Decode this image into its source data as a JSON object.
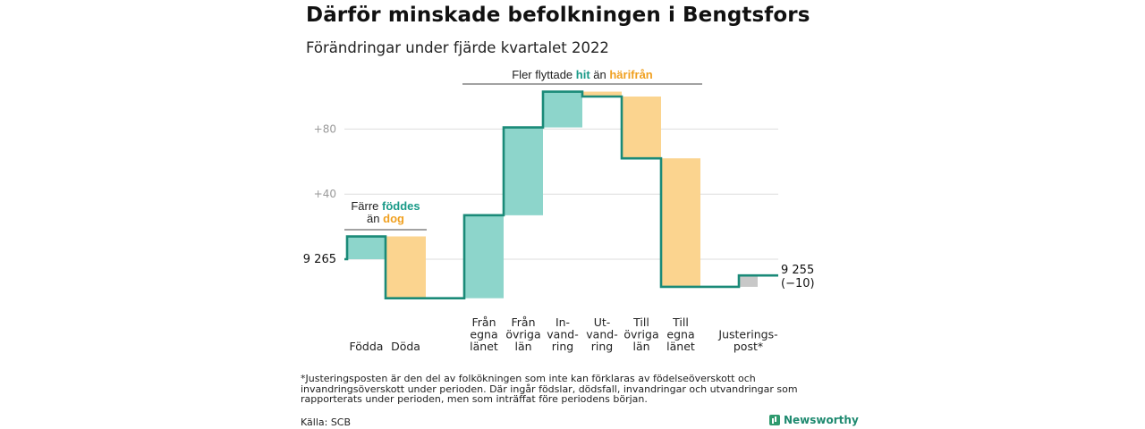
{
  "title": "Därför minskade befolkningen i Bengtsfors",
  "subtitle": "Förändringar under fjärde kvartalet 2022",
  "footnote": "*Justeringsposten är den del av folkökningen som inte kan förklaras av födelseöverskott och invandringsöverskott under perioden. Där ingår födslar, dödsfall, invandringar och utvandringar som rapporterats under perioden, men som inträffat före periodens början.",
  "source": "Källa: SCB",
  "brand": "Newsworthy",
  "colors": {
    "increase": "#8dd5cb",
    "decrease": "#fbd48f",
    "adjustment": "#c8c8c8",
    "line": "#1a8a78",
    "accent_teal": "#1a9a88",
    "accent_orange": "#f0a020",
    "grid": "#dddddd"
  },
  "chart_data": {
    "type": "waterfall",
    "title": "Därför minskade befolkningen i Bengtsfors",
    "subtitle": "Förändringar under fjärde kvartalet 2022",
    "start": {
      "value": 9265,
      "label": "9 265"
    },
    "end": {
      "value": 9255,
      "label": "9 255",
      "change_label": "(−10)"
    },
    "y_tick_labels": [
      "+40",
      "+80"
    ],
    "y_ticks_relative": [
      40,
      80
    ],
    "ylim_relative": [
      -25,
      104
    ],
    "steps": [
      {
        "label_lines": [
          "Födda"
        ],
        "change": 14,
        "kind": "increase"
      },
      {
        "label_lines": [
          "Döda"
        ],
        "change": -38,
        "kind": "decrease"
      },
      {
        "label_lines": [
          "Från",
          "egna",
          "länet"
        ],
        "change": 51,
        "kind": "increase"
      },
      {
        "label_lines": [
          "Från",
          "övriga",
          "län"
        ],
        "change": 54,
        "kind": "increase"
      },
      {
        "label_lines": [
          "In-",
          "vand-",
          "ring"
        ],
        "change": 22,
        "kind": "increase"
      },
      {
        "label_lines": [
          "Ut-",
          "vand-",
          "ring"
        ],
        "change": -3,
        "kind": "decrease"
      },
      {
        "label_lines": [
          "Till",
          "övriga",
          "län"
        ],
        "change": -38,
        "kind": "decrease"
      },
      {
        "label_lines": [
          "Till",
          "egna",
          "länet"
        ],
        "change": -79,
        "kind": "decrease"
      },
      {
        "label_lines": [
          "Justerings-",
          "post*"
        ],
        "change": 7,
        "kind": "adjustment"
      }
    ],
    "annotations": [
      {
        "id": "births",
        "parts": [
          {
            "text": "Färre ",
            "style": "plain"
          },
          {
            "text": "föddes",
            "style": "teal"
          },
          {
            "text": "än ",
            "style": "plain",
            "newline_before": true
          },
          {
            "text": "dog",
            "style": "orange"
          }
        ]
      },
      {
        "id": "migration",
        "parts": [
          {
            "text": "Fler flyttade ",
            "style": "plain"
          },
          {
            "text": "hit",
            "style": "teal"
          },
          {
            "text": " än ",
            "style": "plain"
          },
          {
            "text": "härifrån",
            "style": "orange"
          }
        ]
      }
    ]
  }
}
